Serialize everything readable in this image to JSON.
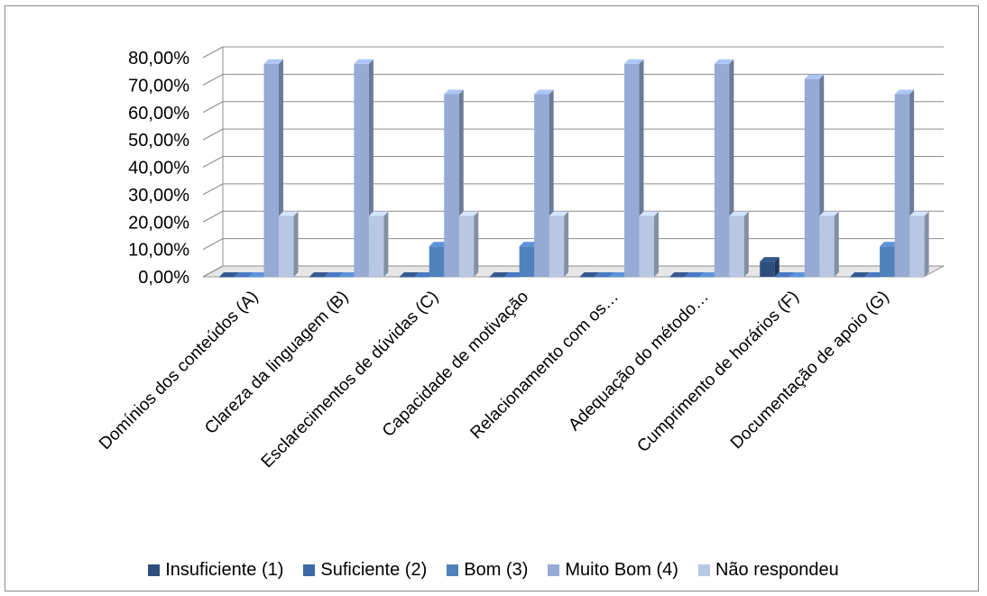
{
  "chart_data": {
    "type": "bar",
    "style": "3d-clustered-column",
    "categories": [
      "Domínios dos conteúdos (A)",
      "Clareza da linguagem (B)",
      "Esclarecimentos de dúvidas (C)",
      "Capacidade de motivação",
      "Relacionamento com os…",
      "Adequação do método…",
      "Cumprimento de horários (F)",
      "Documentação de apoio (G)"
    ],
    "series": [
      {
        "name": "Insuficiente (1)",
        "color": "#2e4e7e",
        "values": [
          0,
          0,
          0,
          0,
          0,
          0,
          0.0556,
          0
        ]
      },
      {
        "name": "Suficiente (2)",
        "color": "#3e6aa8",
        "values": [
          0,
          0,
          0,
          0,
          0,
          0,
          0,
          0
        ]
      },
      {
        "name": "Bom (3)",
        "color": "#4f81bd",
        "values": [
          0,
          0,
          0.1111,
          0.1111,
          0,
          0,
          0,
          0.1111
        ]
      },
      {
        "name": "Muito Bom (4)",
        "color": "#95abd5",
        "values": [
          0.7778,
          0.7778,
          0.6667,
          0.6667,
          0.7778,
          0.7778,
          0.7222,
          0.6667
        ]
      },
      {
        "name": "Não respondeu",
        "color": "#b8c7e3",
        "values": [
          0.2222,
          0.2222,
          0.2222,
          0.2222,
          0.2222,
          0.2222,
          0.2222,
          0.2222
        ]
      }
    ],
    "ylim": [
      0,
      0.8
    ],
    "yticks": [
      "0,00%",
      "10,00%",
      "20,00%",
      "30,00%",
      "40,00%",
      "50,00%",
      "60,00%",
      "70,00%",
      "80,00%"
    ],
    "grid": true,
    "legend_position": "bottom"
  }
}
